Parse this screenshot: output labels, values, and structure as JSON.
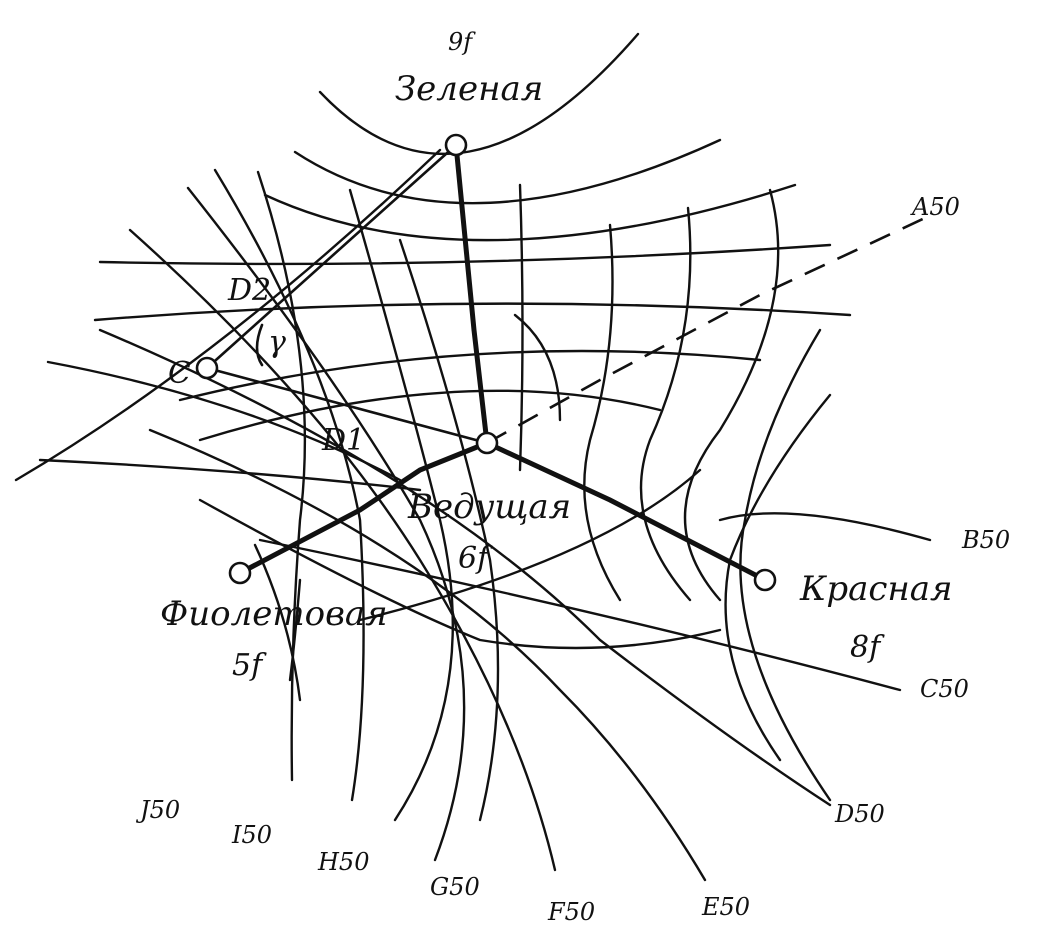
{
  "stations": {
    "green": {
      "name": "Зеленая",
      "code": "9f"
    },
    "master": {
      "name": "Ведущая",
      "code": "6f"
    },
    "red": {
      "name": "Красная",
      "code": "8f"
    },
    "violet": {
      "name": "Фиолетовая",
      "code": "5f"
    }
  },
  "point_c": "C",
  "distances": {
    "d1": "D1",
    "d2": "D2"
  },
  "angle": "γ",
  "lane_labels": {
    "a": "A50",
    "b": "B50",
    "c": "C50",
    "d": "D50",
    "e": "E50",
    "f": "F50",
    "g": "G50",
    "h": "H50",
    "i": "I50",
    "j": "J50"
  }
}
